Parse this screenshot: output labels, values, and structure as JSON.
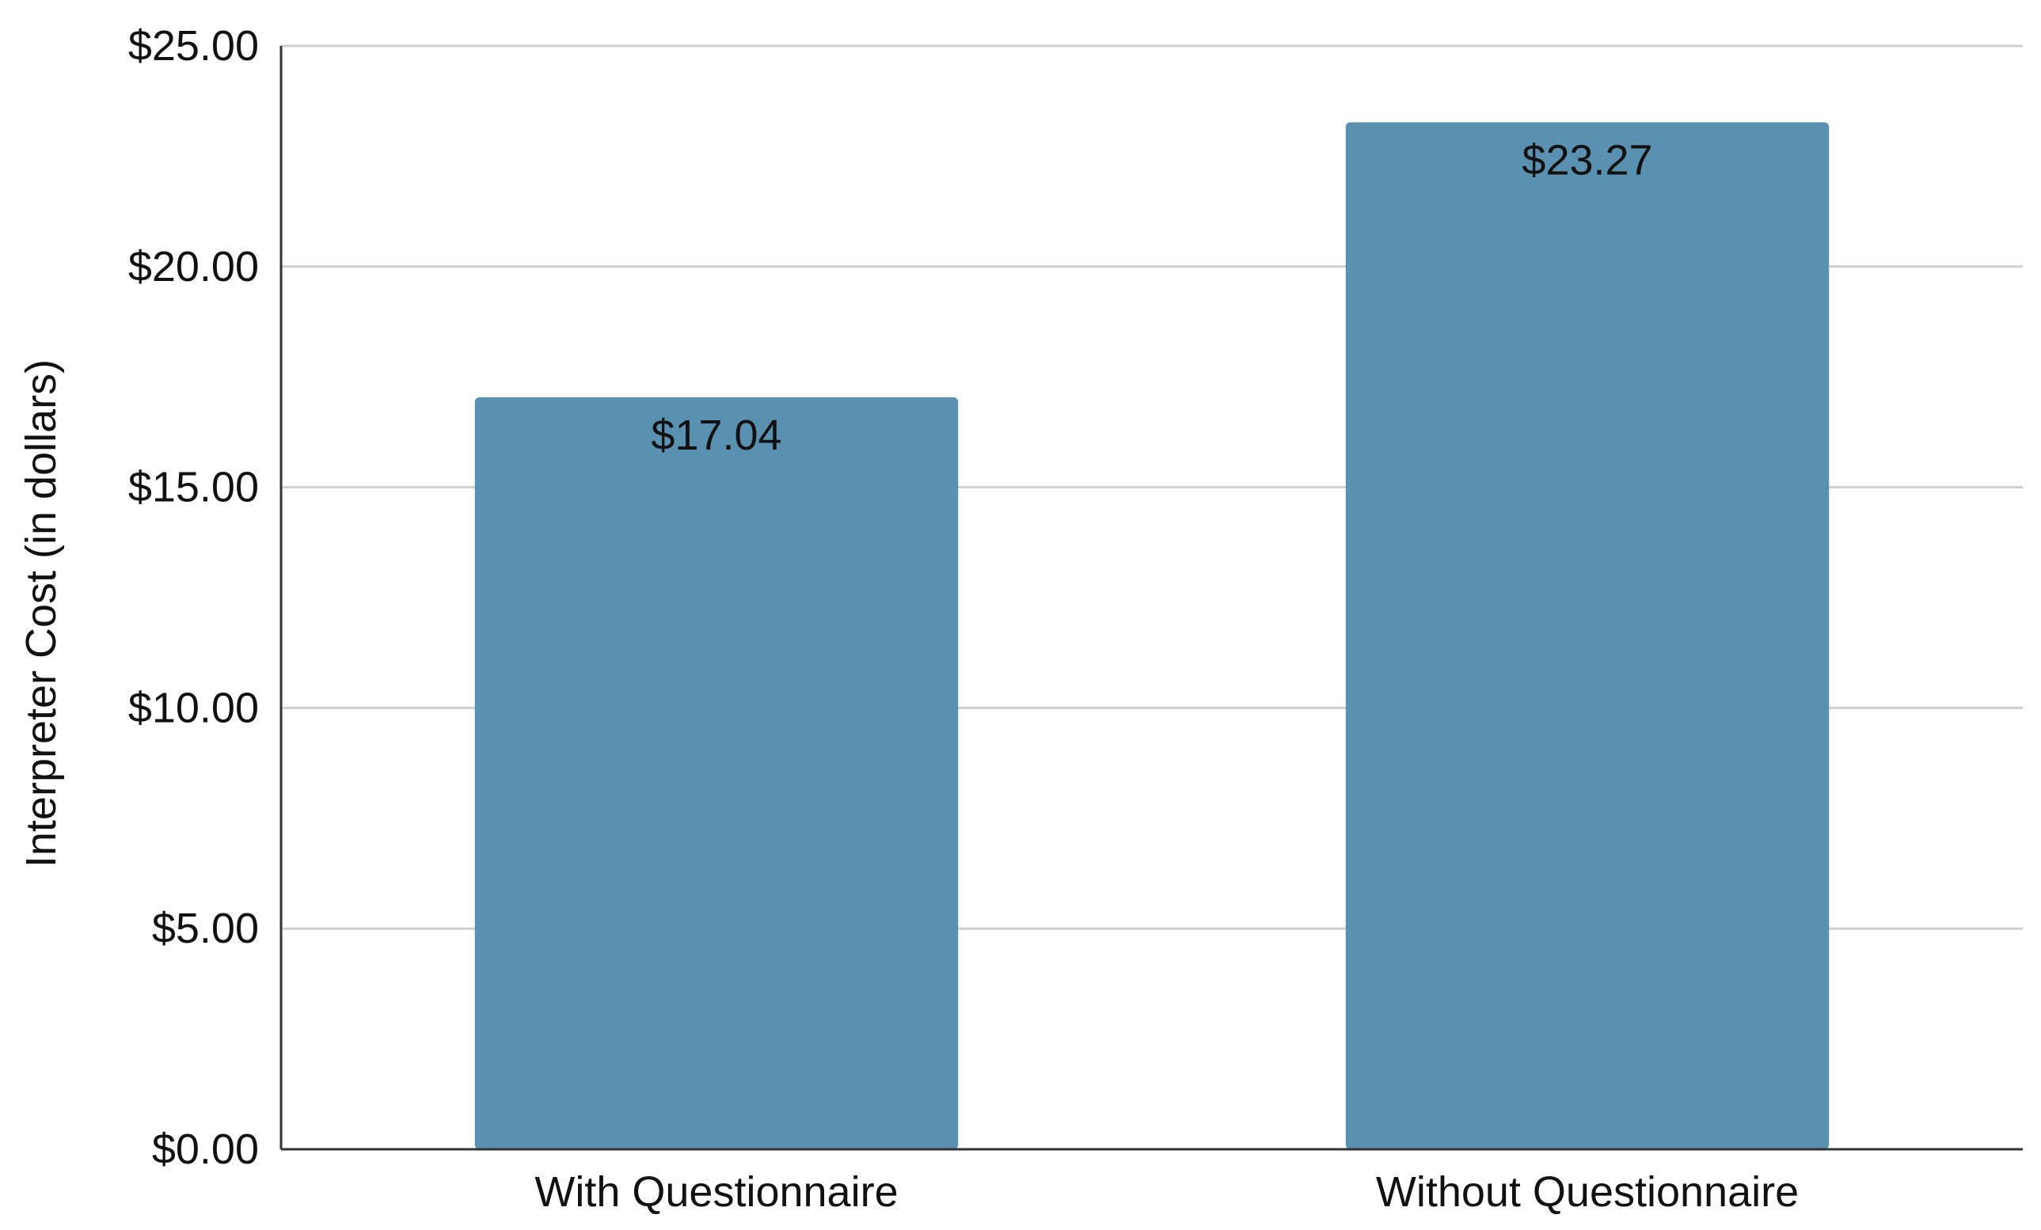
{
  "chart_data": {
    "type": "bar",
    "title": "",
    "xlabel": "",
    "ylabel": "Interpreter Cost (in dollars)",
    "categories": [
      "With Questionnaire",
      "Without Questionnaire"
    ],
    "values": [
      17.04,
      23.27
    ],
    "data_labels": [
      "$17.04",
      "$23.27"
    ],
    "ylim": [
      0,
      25
    ],
    "y_ticks": [
      0,
      5,
      10,
      15,
      20,
      25
    ],
    "y_tick_labels": [
      "$0.00",
      "$5.00",
      "$10.00",
      "$15.00",
      "$20.00",
      "$25.00"
    ],
    "grid": true,
    "legend": "none",
    "bar_color": "#5a91b0"
  }
}
